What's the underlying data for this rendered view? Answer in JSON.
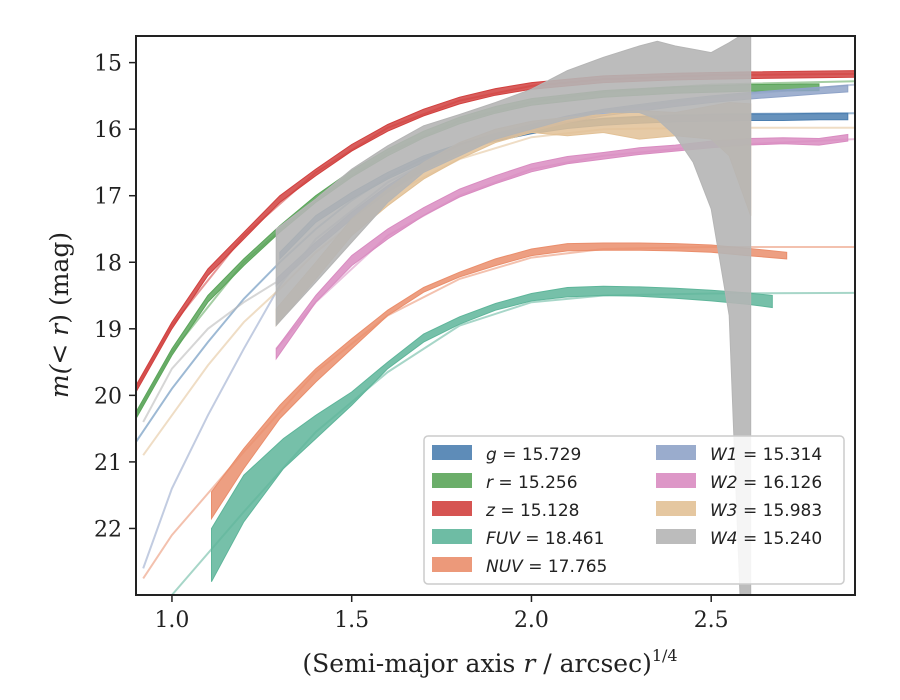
{
  "chart_data": {
    "type": "line",
    "title": "",
    "xlabel_main": "(Semi-major axis ",
    "xlabel_var": "r",
    "xlabel_tail": " / arcsec)",
    "xlabel_exp": "1/4",
    "ylabel_pre": "m(< ",
    "ylabel_var": "r",
    "ylabel_post": ") (mag)",
    "xlim": [
      0.9,
      2.9
    ],
    "ylim": [
      23.0,
      14.6
    ],
    "y_inverted": true,
    "xticks": [
      1.0,
      1.5,
      2.0,
      2.5
    ],
    "xtick_labels": [
      "1.0",
      "1.5",
      "2.0",
      "2.5"
    ],
    "yticks": [
      15,
      16,
      17,
      18,
      19,
      20,
      21,
      22
    ],
    "ytick_labels": [
      "15",
      "16",
      "17",
      "18",
      "19",
      "20",
      "21",
      "22"
    ],
    "grid": false,
    "legend_position": "lower-right",
    "legend_columns": 2,
    "series": [
      {
        "name": "g",
        "value": "15.729",
        "color": "#4c7fb0",
        "x": [
          1.3,
          1.4,
          1.5,
          1.6,
          1.7,
          1.8,
          1.9,
          2.0,
          2.1,
          2.2,
          2.3,
          2.4,
          2.5,
          2.6,
          2.7,
          2.8,
          2.88
        ],
        "y_lo": [
          17.85,
          17.3,
          16.95,
          16.65,
          16.4,
          16.22,
          16.08,
          15.97,
          15.89,
          15.84,
          15.81,
          15.79,
          15.78,
          15.77,
          15.77,
          15.76,
          15.76
        ],
        "y_hi": [
          17.95,
          17.4,
          17.05,
          16.75,
          16.5,
          16.32,
          16.18,
          16.07,
          15.99,
          15.94,
          15.91,
          15.89,
          15.88,
          15.87,
          15.87,
          15.86,
          15.86
        ],
        "model_x": [
          0.9,
          1.0,
          1.1,
          1.2,
          1.3,
          1.4,
          1.5,
          1.6,
          1.7,
          1.8,
          1.9,
          2.0,
          2.2,
          2.4,
          2.6,
          2.9
        ],
        "model_y": [
          20.7,
          19.9,
          19.2,
          18.55,
          18.0,
          17.5,
          17.07,
          16.72,
          16.44,
          16.23,
          16.07,
          15.96,
          15.84,
          15.79,
          15.77,
          15.76
        ]
      },
      {
        "name": "r",
        "value": "15.256",
        "color": "#5ba55a",
        "x": [
          0.9,
          1.0,
          1.1,
          1.2,
          1.3,
          1.4,
          1.5,
          1.6,
          1.7,
          1.8,
          1.9,
          2.0,
          2.2,
          2.4,
          2.6,
          2.8
        ],
        "y_lo": [
          20.25,
          19.3,
          18.5,
          17.95,
          17.45,
          17.0,
          16.62,
          16.3,
          16.03,
          15.82,
          15.66,
          15.54,
          15.42,
          15.36,
          15.33,
          15.32
        ],
        "y_hi": [
          20.35,
          19.4,
          18.6,
          18.05,
          17.55,
          17.1,
          16.72,
          16.4,
          16.13,
          15.92,
          15.76,
          15.64,
          15.52,
          15.46,
          15.43,
          15.42
        ],
        "model_x": [
          0.9,
          1.0,
          1.2,
          1.4,
          1.6,
          1.8,
          2.0,
          2.2,
          2.5,
          2.9
        ],
        "model_y": [
          20.3,
          19.35,
          18.0,
          17.05,
          16.35,
          15.87,
          15.59,
          15.44,
          15.33,
          15.28
        ]
      },
      {
        "name": "z",
        "value": "15.128",
        "color": "#d1413f",
        "x": [
          0.9,
          1.0,
          1.1,
          1.2,
          1.3,
          1.4,
          1.5,
          1.6,
          1.7,
          1.8,
          1.9,
          2.0,
          2.2,
          2.4,
          2.6,
          2.9
        ],
        "y_lo": [
          19.85,
          18.9,
          18.1,
          17.55,
          17.0,
          16.6,
          16.23,
          15.93,
          15.7,
          15.52,
          15.39,
          15.3,
          15.2,
          15.16,
          15.14,
          15.12
        ],
        "y_hi": [
          19.95,
          19.0,
          18.2,
          17.65,
          17.1,
          16.7,
          16.33,
          16.03,
          15.8,
          15.62,
          15.49,
          15.4,
          15.3,
          15.26,
          15.24,
          15.22
        ],
        "model_x": [
          0.9,
          1.0,
          1.2,
          1.4,
          1.6,
          1.8,
          2.0,
          2.2,
          2.5,
          2.9
        ],
        "model_y": [
          19.9,
          18.95,
          17.6,
          16.65,
          15.98,
          15.57,
          15.35,
          15.25,
          15.19,
          15.17
        ]
      },
      {
        "name": "FUV",
        "value": "18.461",
        "color": "#5eb59a",
        "x": [
          1.11,
          1.2,
          1.31,
          1.4,
          1.5,
          1.6,
          1.7,
          1.8,
          1.9,
          2.0,
          2.1,
          2.2,
          2.3,
          2.4,
          2.5,
          2.6,
          2.67
        ],
        "y_lo": [
          22.8,
          21.9,
          21.1,
          20.65,
          20.15,
          19.6,
          19.2,
          18.93,
          18.72,
          18.58,
          18.52,
          18.5,
          18.51,
          18.54,
          18.58,
          18.63,
          18.68
        ],
        "y_hi": [
          22.0,
          21.2,
          20.65,
          20.3,
          19.95,
          19.5,
          19.08,
          18.82,
          18.62,
          18.47,
          18.38,
          18.36,
          18.37,
          18.39,
          18.42,
          18.46,
          18.5
        ],
        "model_x": [
          1.0,
          1.2,
          1.4,
          1.6,
          1.8,
          2.0,
          2.2,
          2.5,
          2.9
        ],
        "model_y": [
          23.0,
          21.75,
          20.55,
          19.65,
          18.95,
          18.6,
          18.5,
          18.47,
          18.46
        ]
      },
      {
        "name": "NUV",
        "value": "17.765",
        "color": "#ea8e6c",
        "x": [
          1.11,
          1.2,
          1.3,
          1.4,
          1.5,
          1.6,
          1.7,
          1.8,
          1.9,
          2.0,
          2.1,
          2.2,
          2.3,
          2.4,
          2.5,
          2.6,
          2.71
        ],
        "y_lo": [
          21.85,
          21.1,
          20.35,
          19.8,
          19.3,
          18.8,
          18.45,
          18.22,
          18.05,
          17.9,
          17.83,
          17.82,
          17.82,
          17.83,
          17.85,
          17.9,
          17.95
        ],
        "y_hi": [
          21.45,
          20.8,
          20.15,
          19.6,
          19.15,
          18.72,
          18.38,
          18.15,
          17.95,
          17.8,
          17.72,
          17.71,
          17.71,
          17.72,
          17.74,
          17.79,
          17.85
        ],
        "model_x": [
          0.92,
          1.0,
          1.2,
          1.4,
          1.6,
          1.8,
          2.0,
          2.2,
          2.5,
          2.9
        ],
        "model_y": [
          22.75,
          22.1,
          20.85,
          19.65,
          18.8,
          18.25,
          17.93,
          17.8,
          17.77,
          17.77
        ]
      },
      {
        "name": "W1",
        "value": "15.314",
        "color": "#8fa3c8",
        "x": [
          1.29,
          1.4,
          1.5,
          1.6,
          1.7,
          1.8,
          1.9,
          2.0,
          2.1,
          2.2,
          2.3,
          2.4,
          2.5,
          2.6,
          2.7,
          2.8,
          2.88
        ],
        "y_lo": [
          18.25,
          17.7,
          17.25,
          16.85,
          16.52,
          16.26,
          16.07,
          15.93,
          15.8,
          15.7,
          15.63,
          15.56,
          15.5,
          15.45,
          15.41,
          15.37,
          15.34
        ],
        "y_hi": [
          18.35,
          17.8,
          17.35,
          16.95,
          16.62,
          16.36,
          16.17,
          16.03,
          15.9,
          15.8,
          15.73,
          15.66,
          15.6,
          15.55,
          15.51,
          15.47,
          15.44
        ],
        "model_x": [
          0.92,
          1.0,
          1.1,
          1.2,
          1.3,
          1.4,
          1.6,
          1.8,
          2.0,
          2.2,
          2.5,
          2.9
        ],
        "model_y": [
          22.6,
          21.4,
          20.3,
          19.3,
          18.35,
          17.65,
          16.8,
          16.25,
          15.95,
          15.72,
          15.52,
          15.33
        ]
      },
      {
        "name": "W2",
        "value": "16.126",
        "color": "#d98cc1",
        "x": [
          1.29,
          1.4,
          1.5,
          1.6,
          1.7,
          1.8,
          1.9,
          2.0,
          2.1,
          2.2,
          2.3,
          2.4,
          2.5,
          2.6,
          2.7,
          2.8,
          2.88
        ],
        "y_lo": [
          19.45,
          18.6,
          18.05,
          17.65,
          17.3,
          17.02,
          16.82,
          16.64,
          16.52,
          16.45,
          16.38,
          16.33,
          16.28,
          16.24,
          16.22,
          16.24,
          16.18
        ],
        "y_hi": [
          19.3,
          18.5,
          17.9,
          17.5,
          17.18,
          16.9,
          16.7,
          16.52,
          16.41,
          16.35,
          16.28,
          16.24,
          16.18,
          16.14,
          16.13,
          16.14,
          16.08
        ],
        "model_x": [
          1.29,
          1.4,
          1.6,
          1.8,
          2.0,
          2.2,
          2.5,
          2.9
        ],
        "model_y": [
          19.3,
          18.6,
          17.6,
          17.0,
          16.6,
          16.4,
          16.25,
          16.15
        ]
      },
      {
        "name": "W3",
        "value": "15.983",
        "color": "#e2c196",
        "x": [
          1.29,
          1.4,
          1.5,
          1.6,
          1.7,
          1.8,
          1.9,
          2.0,
          2.1,
          2.2,
          2.3,
          2.4,
          2.5,
          2.55,
          2.61
        ],
        "y_lo": [
          18.95,
          18.25,
          17.6,
          17.15,
          16.75,
          16.45,
          16.2,
          16.05,
          16.1,
          16.05,
          16.15,
          16.1,
          16.15,
          16.4,
          17.3
        ],
        "y_hi": [
          18.7,
          18.0,
          17.35,
          16.9,
          16.5,
          16.2,
          16.0,
          15.88,
          15.82,
          15.78,
          15.72,
          15.75,
          15.65,
          15.6,
          15.62
        ],
        "model_x": [
          0.92,
          1.0,
          1.1,
          1.2,
          1.3,
          1.4,
          1.6,
          1.8,
          2.0,
          2.2,
          2.5,
          2.9
        ],
        "model_y": [
          20.9,
          20.3,
          19.55,
          18.9,
          18.4,
          17.85,
          17.0,
          16.45,
          16.12,
          16.0,
          15.98,
          15.98
        ]
      },
      {
        "name": "W4",
        "value": "15.240",
        "color": "#b5b5b5",
        "x": [
          1.29,
          1.4,
          1.5,
          1.6,
          1.7,
          1.8,
          1.9,
          2.0,
          2.1,
          2.2,
          2.3,
          2.35,
          2.4,
          2.45,
          2.5,
          2.55,
          2.58,
          2.61
        ],
        "y_lo": [
          18.95,
          18.3,
          17.7,
          17.1,
          16.65,
          16.4,
          16.15,
          16.0,
          15.85,
          15.75,
          15.75,
          15.85,
          16.1,
          16.5,
          17.2,
          18.8,
          23.0,
          23.0
        ],
        "y_hi": [
          17.5,
          17.05,
          16.6,
          16.25,
          15.95,
          15.78,
          15.6,
          15.4,
          15.12,
          14.92,
          14.75,
          14.68,
          14.75,
          14.8,
          14.85,
          14.7,
          14.6,
          14.6
        ],
        "model_x": [
          0.92,
          1.0,
          1.1,
          1.2,
          1.29
        ],
        "model_y": [
          20.4,
          19.6,
          19.0,
          18.6,
          18.3
        ]
      }
    ]
  }
}
